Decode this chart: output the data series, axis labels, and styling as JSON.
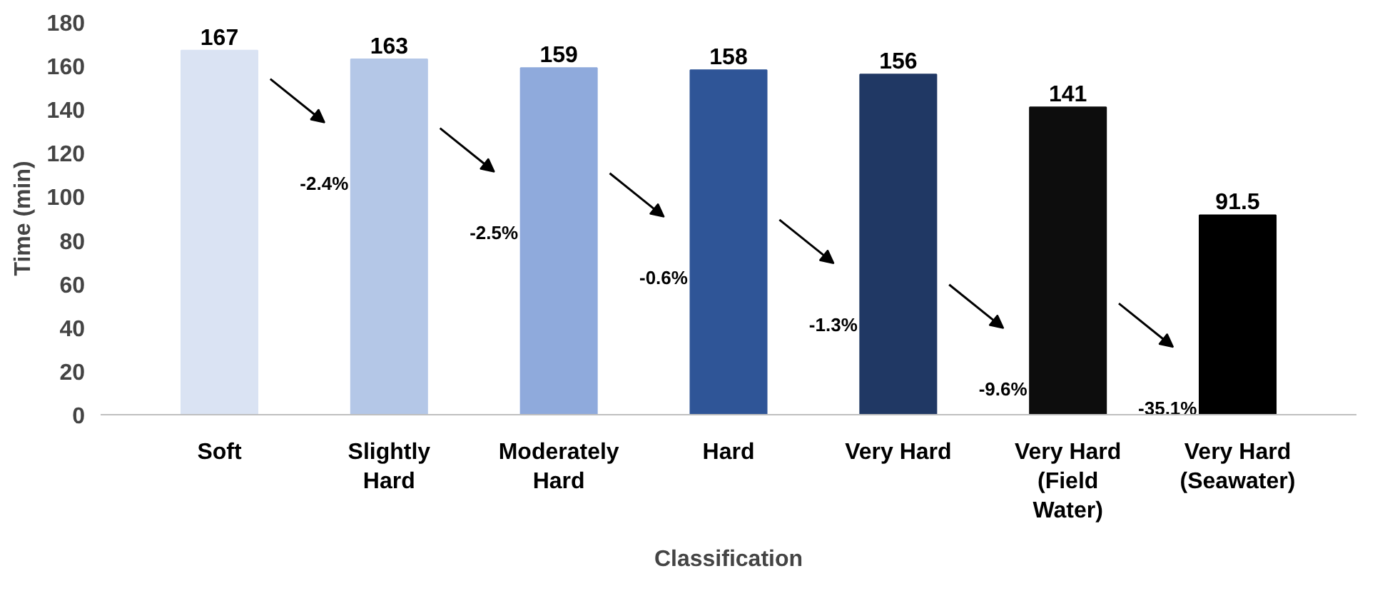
{
  "chart_data": {
    "type": "bar",
    "xlabel": "Classification",
    "ylabel": "Time (min)",
    "categories": [
      "Soft",
      "Slightly Hard",
      "Moderately Hard",
      "Hard",
      "Very Hard",
      "Very Hard (Field Water)",
      "Very Hard (Seawater)"
    ],
    "values": [
      167,
      163,
      159,
      158,
      156,
      141,
      91.5
    ],
    "colors": [
      "#dae3f3",
      "#b4c7e7",
      "#8faadc",
      "#2f5597",
      "#203864",
      "#0d0d0d",
      "#000000"
    ],
    "ylim": [
      0,
      180
    ],
    "yticks": [
      0,
      20,
      40,
      60,
      80,
      100,
      120,
      140,
      160,
      180
    ],
    "grid": false,
    "data_labels": true,
    "annotations": [
      "-2.4%",
      "-2.5%",
      "-0.6%",
      "-1.3%",
      "-9.6%",
      "-35.1%"
    ]
  }
}
